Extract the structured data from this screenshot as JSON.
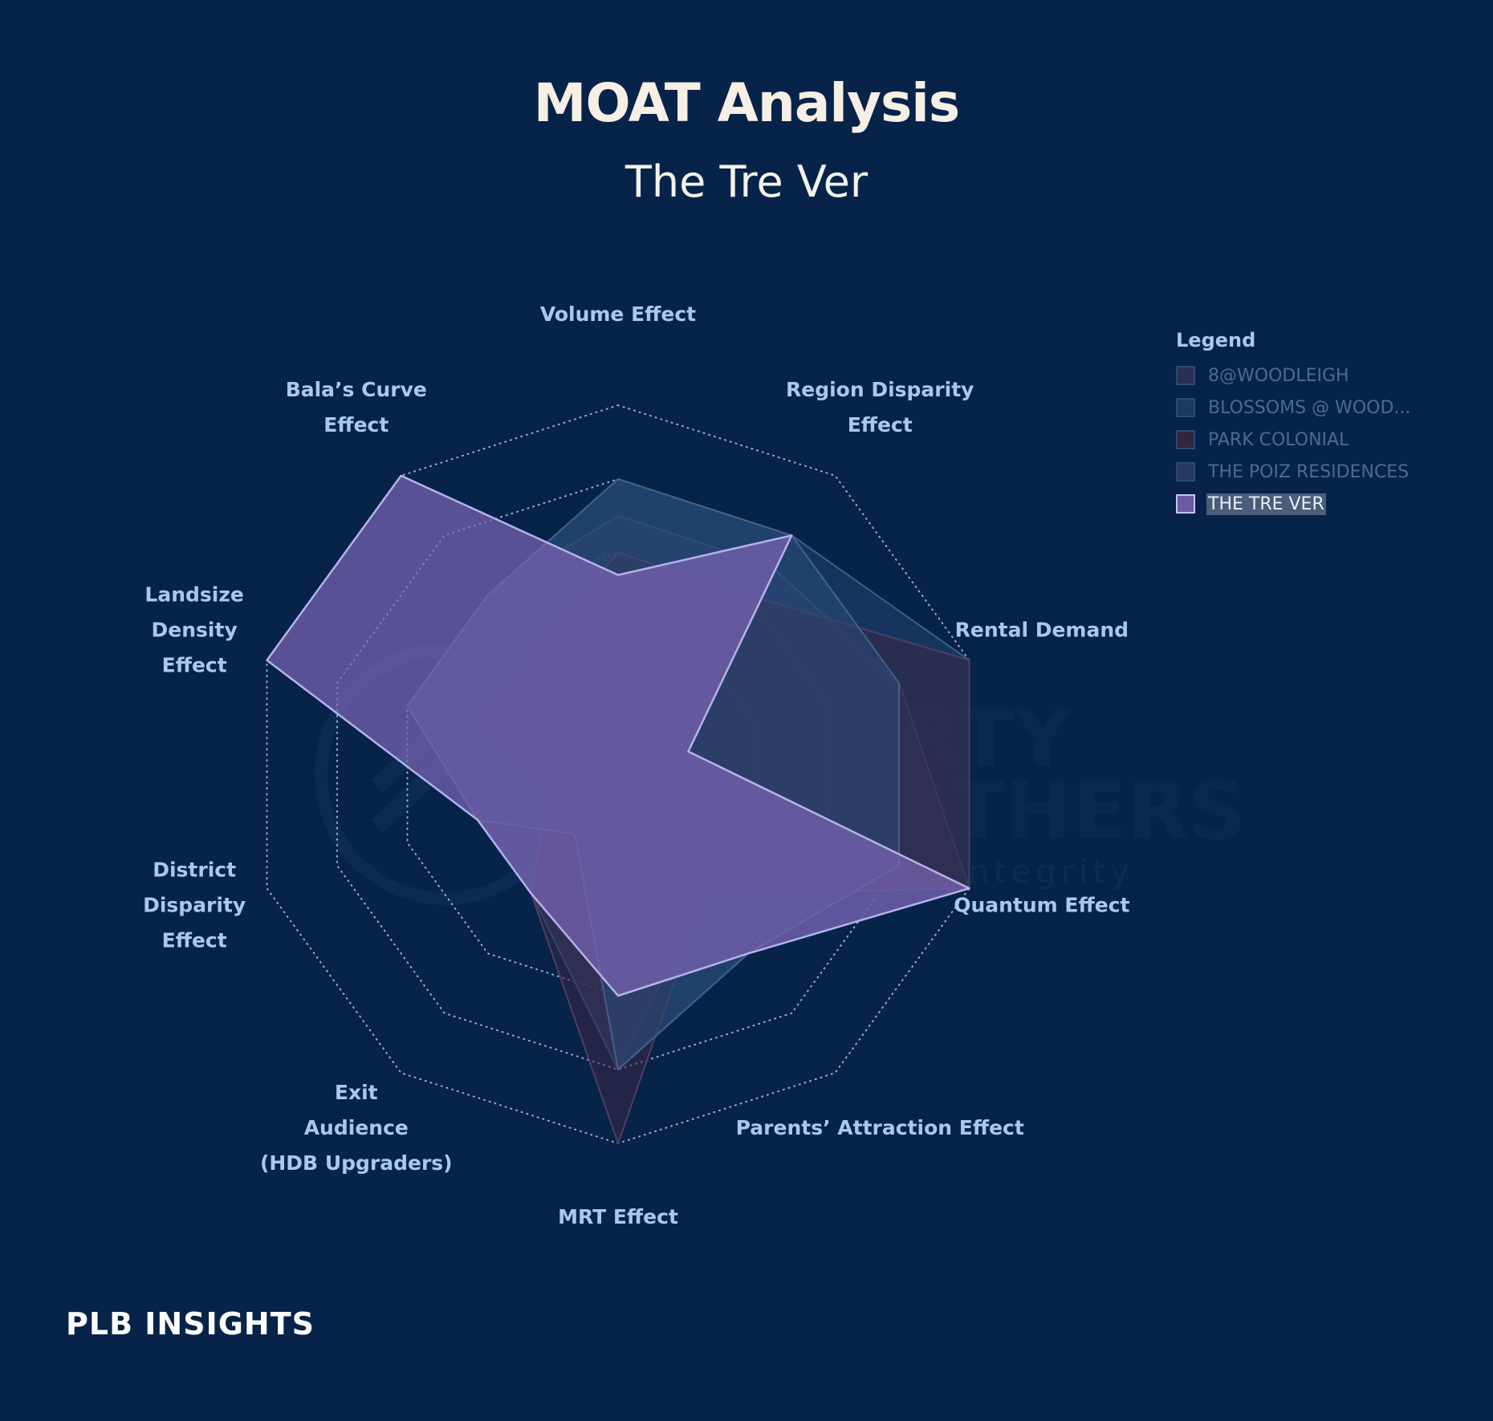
{
  "title": "MOAT Analysis",
  "subtitle": "The Tre Ver",
  "watermark": {
    "line1": "PROPERTY",
    "line2": "LIMBROTHERS",
    "line3": "Real Estate With Integrity"
  },
  "brand": "PLB INSIGHTS",
  "legend": {
    "title": "Legend",
    "items": [
      {
        "label": "8@WOODLEIGH",
        "color": "#2a2f56",
        "active": false
      },
      {
        "label": "BLOSSOMS @ WOOD...",
        "color": "#1c3a5e",
        "active": false
      },
      {
        "label": "PARK COLONIAL",
        "color": "#30263e",
        "active": false
      },
      {
        "label": "THE POIZ RESIDENCES",
        "color": "#243a62",
        "active": false
      },
      {
        "label": "THE TRE VER",
        "color": "#6a5aa2",
        "active": true
      }
    ]
  },
  "chart_data": {
    "type": "radar",
    "max": 5,
    "rings": 5,
    "axes": [
      [
        "Volume Effect"
      ],
      [
        "Region Disparity",
        "Effect"
      ],
      [
        "Rental Demand"
      ],
      [
        "Quantum Effect"
      ],
      [
        "Parents’ Attraction Effect"
      ],
      [
        "MRT Effect"
      ],
      [
        "Exit",
        "Audience",
        "(HDB Upgraders)"
      ],
      [
        "District",
        "Disparity",
        "Effect"
      ],
      [
        "Landsize",
        "Density",
        "Effect"
      ],
      [
        "Bala’s Curve",
        "Effect"
      ]
    ],
    "series": [
      {
        "name": "8@WOODLEIGH",
        "values": [
          3.5,
          3.5,
          4,
          5,
          2,
          4,
          2,
          2,
          3,
          3
        ],
        "fill": "#3d3566",
        "stroke": "#52598a"
      },
      {
        "name": "BLOSSOMS @ WOOD...",
        "values": [
          4,
          4,
          5,
          5,
          3,
          4,
          2,
          2,
          3,
          3
        ],
        "fill": "#22456f",
        "stroke": "#3c5f88"
      },
      {
        "name": "PARK COLONIAL",
        "values": [
          3,
          3,
          5,
          5,
          2,
          5,
          2,
          1,
          2,
          2
        ],
        "fill": "#3a2845",
        "stroke": "#4e3f63"
      },
      {
        "name": "THE POIZ RESIDENCES",
        "values": [
          4,
          4,
          4,
          4,
          3,
          4,
          1,
          2,
          3,
          3
        ],
        "fill": "#2a4a78",
        "stroke": "#455f8c"
      },
      {
        "name": "THE TRE VER",
        "values": [
          2.7,
          4,
          1,
          5,
          3,
          3,
          2,
          2,
          5,
          5
        ],
        "fill": "#7a64b4",
        "stroke": "#b5b2ea"
      }
    ]
  }
}
